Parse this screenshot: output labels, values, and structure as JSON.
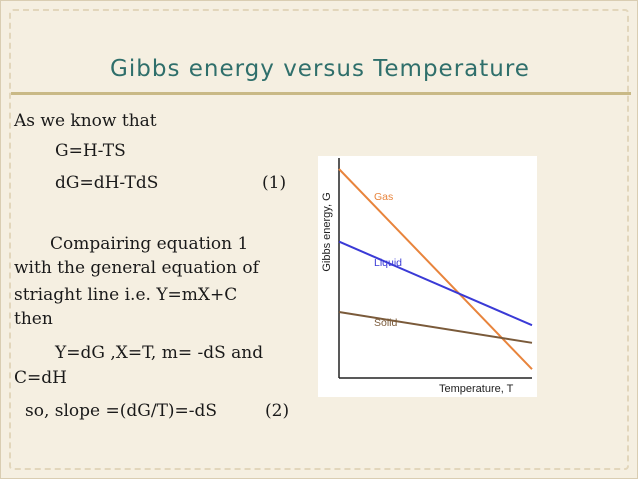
{
  "slide": {
    "title": "Gibbs energy versus Temperature",
    "lines": {
      "l1": "As we know that",
      "l2": "G=H-TS",
      "l3": "dG=dH-TdS",
      "l3_eq": "(1)",
      "l4": "Compairing equation 1",
      "l5": "with the general equation of",
      "l6": "striaght line  i.e.   Y=mX+C",
      "l7": "then",
      "l8": "Y=dG ,X=T, m= -dS and",
      "l9": "C=dH",
      "l10": "so, slope =(dG/T)=-dS",
      "l10_eq": "(2)"
    }
  },
  "colors": {
    "title": "#2f6f6b",
    "gas": "#e8843c",
    "liquid": "#3a3ad6",
    "solid": "#7a5a3a",
    "axis": "#222222"
  },
  "chart_data": {
    "type": "line",
    "xlabel": "Temperature,  T",
    "ylabel": "Gibbs  energy,  G",
    "grid": false,
    "series": [
      {
        "name": "Gas",
        "start": 0.95,
        "end": 0.04
      },
      {
        "name": "Liquid",
        "start": 0.62,
        "end": 0.24
      },
      {
        "name": "Solid",
        "start": 0.3,
        "end": 0.16
      }
    ]
  }
}
